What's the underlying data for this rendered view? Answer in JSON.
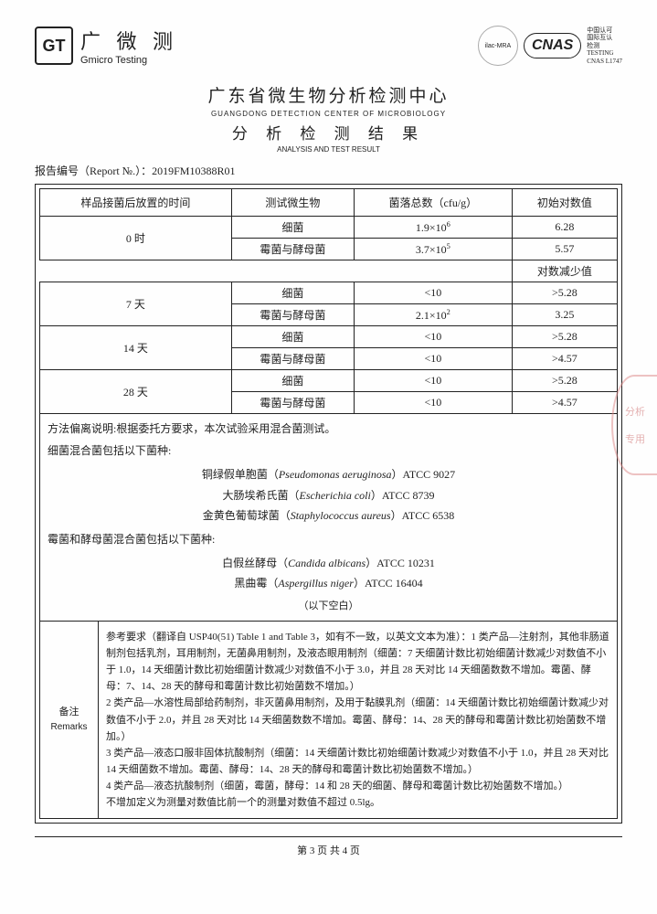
{
  "brand": {
    "cn": "广 微 测",
    "en": "Gmicro Testing",
    "gt": "GT"
  },
  "cert": {
    "ilac": "ilac-MRA",
    "cnas": "CNAS",
    "cnas_sub": "中国认可\n国际互认\n检测\nTESTING\nCNAS L1747"
  },
  "titles": {
    "t1": "广东省微生物分析检测中心",
    "t2": "GUANGDONG  DETECTION  CENTER  OF  MICROBIOLOGY",
    "t3": "分 析 检 测 结 果",
    "t4": "ANALYSIS AND TEST RESULT"
  },
  "report_no_label": "报告编号（Report №.）：",
  "report_no": "2019FM10388R01",
  "table": {
    "headers": [
      "样品接菌后放置的时间",
      "测试微生物",
      "菌落总数（cfu/g）",
      "初始对数值"
    ],
    "reduction_label": "对数减少值",
    "rows": [
      {
        "time": "0 时",
        "a": [
          "细菌",
          "1.9×10⁶",
          "6.28"
        ],
        "b": [
          "霉菌与酵母菌",
          "3.7×10⁵",
          "5.57"
        ]
      },
      {
        "time": "7 天",
        "a": [
          "细菌",
          "<10",
          ">5.28"
        ],
        "b": [
          "霉菌与酵母菌",
          "2.1×10²",
          "3.25"
        ]
      },
      {
        "time": "14 天",
        "a": [
          "细菌",
          "<10",
          ">5.28"
        ],
        "b": [
          "霉菌与酵母菌",
          "<10",
          ">4.57"
        ]
      },
      {
        "time": "28 天",
        "a": [
          "细菌",
          "<10",
          ">5.28"
        ],
        "b": [
          "霉菌与酵母菌",
          "<10",
          ">4.57"
        ]
      }
    ]
  },
  "method": {
    "deviation": "方法偏离说明:根据委托方要求，本次试验采用混合菌测试。",
    "bact_hd": "细菌混合菌包括以下菌种:",
    "bact": [
      "铜绿假单胞菌（<i>Pseudomonas aeruginosa</i>）ATCC 9027",
      "大肠埃希氏菌（<i>Escherichia coli</i>）ATCC 8739",
      "金黄色葡萄球菌（<i>Staphylococcus aureus</i>）ATCC 6538"
    ],
    "fungi_hd": "霉菌和酵母菌混合菌包括以下菌种:",
    "fungi": [
      "白假丝酵母（<i>Candida albicans</i>）ATCC 10231",
      "黑曲霉（<i>Aspergillus niger</i>）ATCC 16404"
    ],
    "blank": "（以下空白）"
  },
  "remarks": {
    "label_cn": "备注",
    "label_en": "Remarks",
    "text": "参考要求（翻译自 USP40(51) Table 1 and Table 3，如有不一致，以英文文本为准）：1 类产品—注射剂，其他非肠道制剂包括乳剂，耳用制剂，无菌鼻用制剂，及液态眼用制剂（细菌：7 天细菌计数比初始细菌计数减少对数值不小于 1.0，14 天细菌计数比初始细菌计数减少对数值不小于 3.0，并且 28 天对比 14 天细菌数数不增加。霉菌、酵母：7、14、28 天的酵母和霉菌计数比初始菌数不增加。）\n2 类产品—水溶性局部给药制剂，非灭菌鼻用制剂，及用于黏膜乳剂（细菌：14 天细菌计数比初始细菌计数减少对数值不小于 2.0，并且 28 天对比 14 天细菌数数不增加。霉菌、酵母：14、28 天的酵母和霉菌计数比初始菌数不增加。）\n3 类产品—液态口服非固体抗酸制剂（细菌：14 天细菌计数比初始细菌计数减少对数值不小于 1.0，并且 28 天对比 14 天细菌数不增加。霉菌、酵母：14、28 天的酵母和霉菌计数比初始菌数不增加。）\n4 类产品—液态抗酸制剂（细菌，霉菌，酵母：14 和 28 天的细菌、酵母和霉菌计数比初始菌数不增加。）\n不增加定义为测量对数值比前一个的测量对数值不超过 0.5lg。"
  },
  "pager": "第 3 页 共 4 页",
  "stamp": {
    "a": "分析",
    "b": "专用"
  }
}
